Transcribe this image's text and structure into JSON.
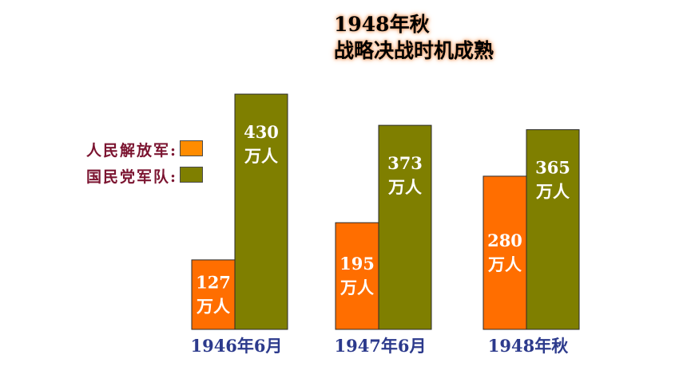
{
  "title_lines": [
    "1948年秋",
    "战略决战时机成熟"
  ],
  "colors": {
    "pla": "#ff6e00",
    "kmt": "#7f7f00",
    "label": "#ffffff",
    "category": "#2c3a8c"
  },
  "legend": [
    {
      "label": "人民解放军:",
      "color": "#ff8c00"
    },
    {
      "label": "国民党军队:",
      "color": "#7f7f00"
    }
  ],
  "chart_data": {
    "type": "bar",
    "categories": [
      "1946年6月",
      "1947年6月",
      "1948年秋"
    ],
    "series": [
      {
        "name": "人民解放军",
        "values": [
          127,
          195,
          280
        ]
      },
      {
        "name": "国民党军队",
        "values": [
          430,
          373,
          365
        ]
      }
    ],
    "value_unit": "万人",
    "ylim": [
      0,
      450
    ],
    "grid": false,
    "legend_position": "left"
  }
}
